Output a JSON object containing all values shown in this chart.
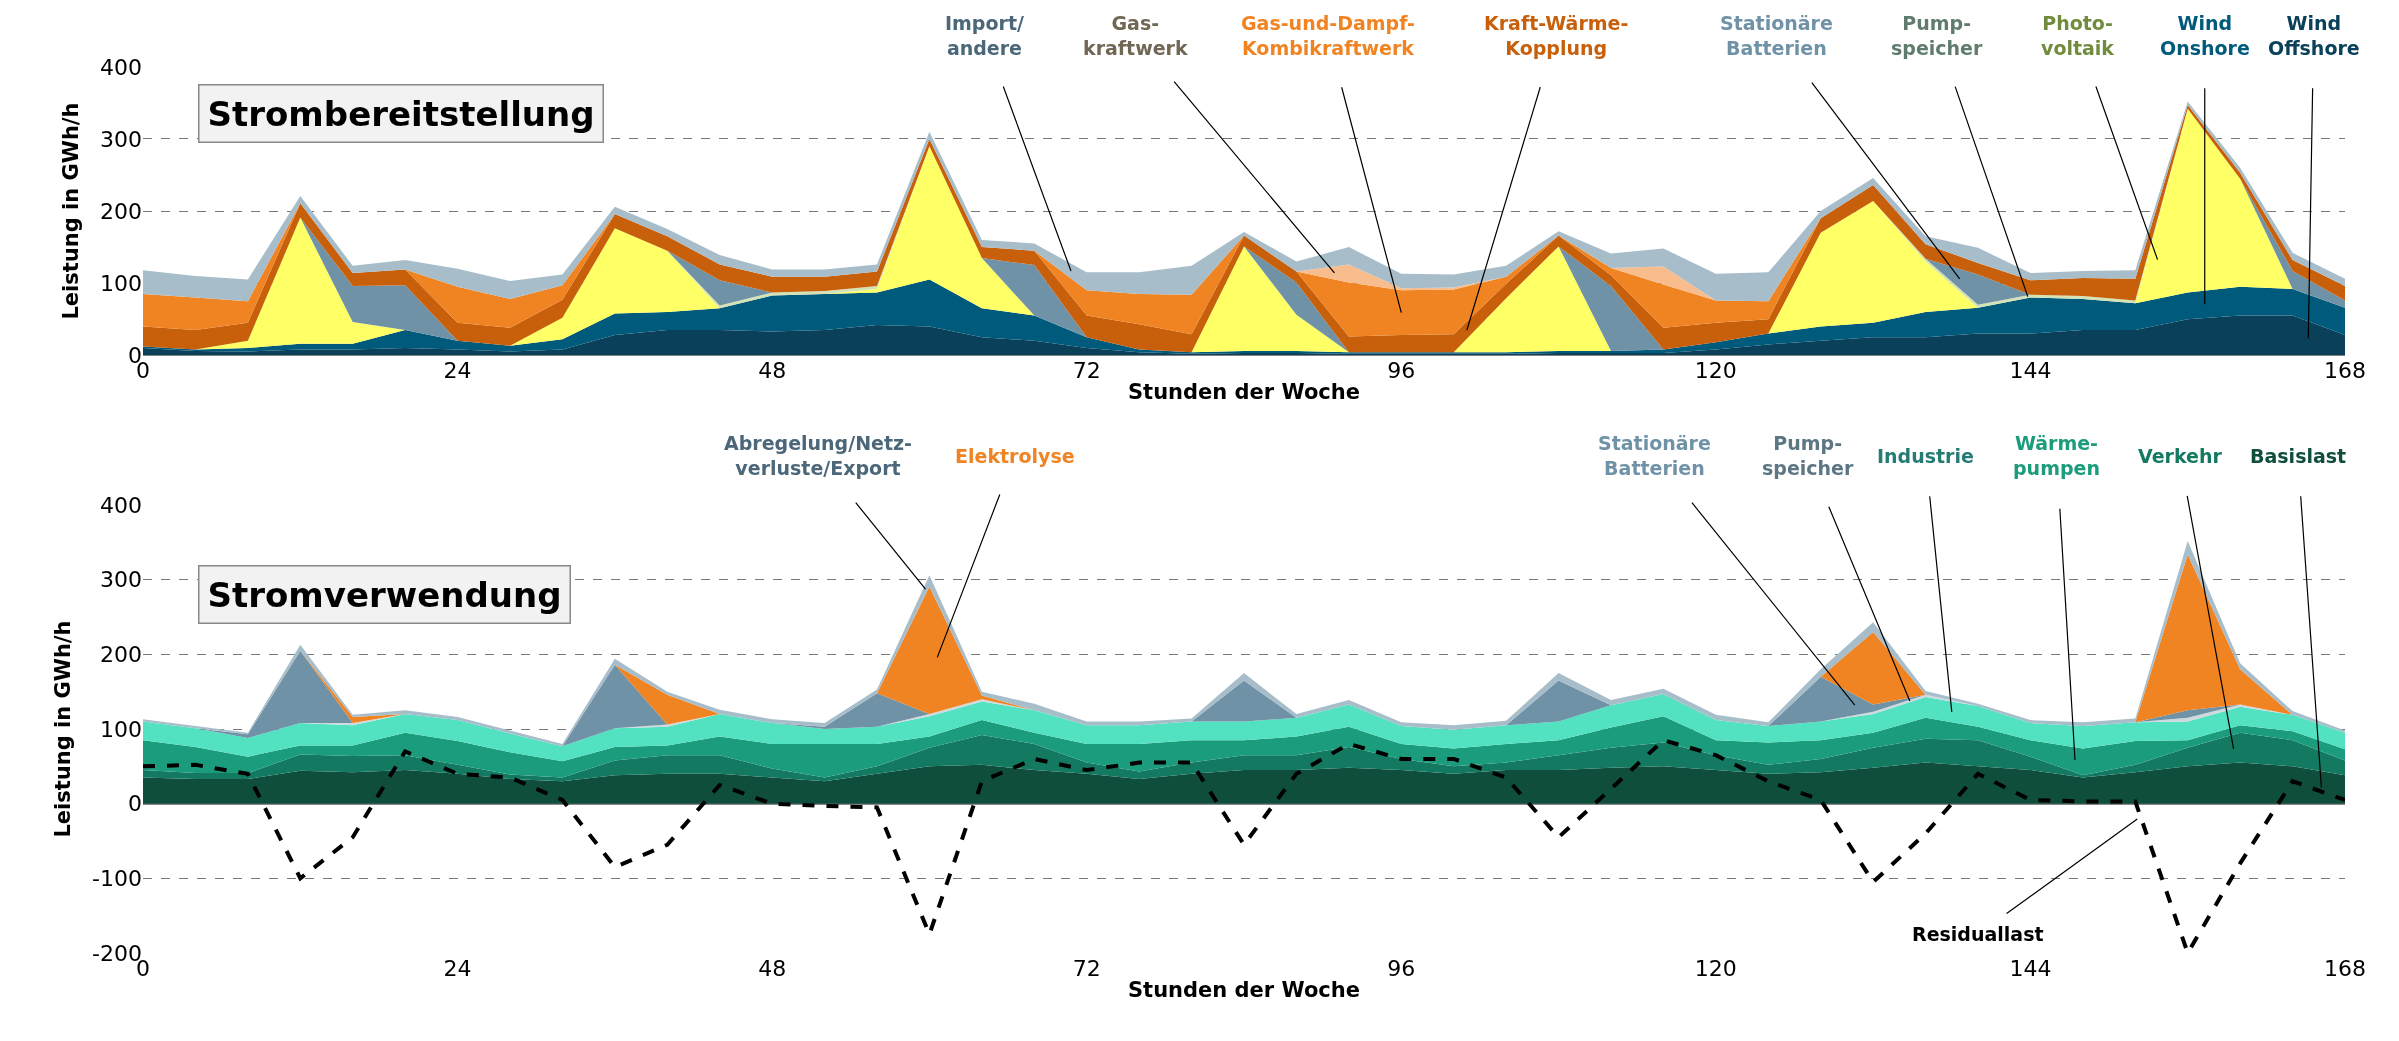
{
  "chart_data": [
    {
      "type": "area",
      "stacked": true,
      "title": "Strombereitstellung",
      "xlabel": "Stunden der Woche",
      "ylabel": "Leistung in GWh/h",
      "grid": "y",
      "xlim": [
        0,
        168
      ],
      "xticks": [
        0,
        24,
        48,
        72,
        96,
        120,
        144,
        168
      ],
      "ylim": [
        0,
        400
      ],
      "yticks": [
        0,
        100,
        200,
        300,
        400
      ],
      "x": [
        0,
        4,
        8,
        12,
        16,
        20,
        24,
        28,
        32,
        36,
        40,
        44,
        48,
        52,
        56,
        60,
        64,
        68,
        72,
        76,
        80,
        84,
        88,
        92,
        96,
        100,
        104,
        108,
        112,
        116,
        120,
        124,
        128,
        132,
        136,
        140,
        144,
        148,
        152,
        156,
        160,
        164,
        168
      ],
      "series": [
        {
          "name": "Wind\nOffshore",
          "color": "#0a4059",
          "values": [
            10,
            6,
            5,
            8,
            8,
            10,
            8,
            5,
            8,
            28,
            35,
            35,
            33,
            35,
            42,
            40,
            25,
            20,
            10,
            4,
            2,
            3,
            3,
            2,
            2,
            2,
            2,
            3,
            3,
            3,
            8,
            15,
            20,
            25,
            25,
            30,
            30,
            35,
            35,
            50,
            55,
            55,
            28
          ]
        },
        {
          "name": "Wind\nOnshore",
          "color": "#005a7c",
          "values": [
            2,
            2,
            5,
            8,
            8,
            25,
            12,
            8,
            14,
            30,
            25,
            30,
            50,
            50,
            45,
            65,
            40,
            35,
            15,
            4,
            2,
            3,
            3,
            2,
            2,
            2,
            2,
            3,
            3,
            5,
            10,
            15,
            20,
            20,
            35,
            36,
            50,
            43,
            37,
            37,
            40,
            37,
            38
          ]
        },
        {
          "name": "Photo-\nvoltaik",
          "color": "#ffff66",
          "values": [
            null,
            0,
            10,
            175,
            30,
            0,
            null,
            0,
            30,
            118,
            85,
            0,
            null,
            0,
            5,
            185,
            70,
            0,
            null,
            null,
            0,
            145,
            50,
            0,
            null,
            0,
            75,
            145,
            0,
            null,
            null,
            0,
            130,
            169,
            70,
            0,
            null,
            null,
            0,
            255,
            150,
            0,
            null
          ]
        },
        {
          "name": "Pump-\nspeicher",
          "color": "#d4e3b5",
          "values": [
            null,
            null,
            null,
            null,
            null,
            null,
            null,
            null,
            null,
            null,
            0,
            4,
            4,
            4,
            4,
            0,
            null,
            null,
            null,
            null,
            null,
            null,
            null,
            null,
            null,
            null,
            null,
            null,
            null,
            null,
            null,
            null,
            null,
            0,
            4,
            4,
            4,
            4,
            4,
            0,
            null,
            null,
            null
          ]
        },
        {
          "name": "Stationäre\nBatterien",
          "color": "#7092a6",
          "values": [
            null,
            null,
            null,
            0,
            50,
            62,
            0,
            null,
            null,
            null,
            0,
            35,
            0,
            null,
            null,
            null,
            0,
            70,
            0,
            null,
            null,
            0,
            45,
            0,
            null,
            null,
            null,
            0,
            90,
            0,
            null,
            null,
            null,
            null,
            0,
            42,
            0,
            null,
            null,
            null,
            0,
            25,
            10
          ]
        },
        {
          "name": "Kraft-Wärme-\nKopplung",
          "color": "#c85f0a",
          "values": [
            28,
            27,
            25,
            20,
            18,
            22,
            25,
            25,
            25,
            20,
            20,
            22,
            22,
            20,
            20,
            10,
            15,
            20,
            30,
            35,
            25,
            15,
            15,
            22,
            24,
            25,
            20,
            15,
            15,
            30,
            27,
            20,
            20,
            22,
            20,
            16,
            20,
            25,
            30,
            5,
            8,
            15,
            20
          ]
        },
        {
          "name": "Gas-und-Dampf-\nKombikraftwerk",
          "color": "#f18422",
          "values": [
            45,
            45,
            30,
            0,
            null,
            0,
            50,
            40,
            20,
            0,
            null,
            null,
            null,
            null,
            null,
            null,
            null,
            0,
            35,
            42,
            55,
            0,
            0,
            75,
            62,
            62,
            10,
            0,
            10,
            60,
            31,
            25,
            0,
            null,
            null,
            null,
            null,
            null,
            null,
            null,
            null,
            null,
            null
          ]
        },
        {
          "name": "Gas-\nkraftwerk",
          "color": "#f9bd8d",
          "values": [
            null,
            null,
            null,
            null,
            null,
            null,
            null,
            null,
            null,
            null,
            null,
            null,
            null,
            null,
            null,
            null,
            null,
            null,
            null,
            null,
            null,
            null,
            0,
            25,
            3,
            3,
            0,
            null,
            0,
            25,
            0,
            null,
            null,
            null,
            null,
            null,
            null,
            null,
            null,
            null,
            null,
            null,
            null
          ]
        },
        {
          "name": "Import/\nandere",
          "color": "#a7bdca",
          "values": [
            33,
            30,
            30,
            10,
            10,
            13,
            25,
            25,
            15,
            10,
            10,
            13,
            10,
            10,
            10,
            10,
            10,
            10,
            25,
            30,
            40,
            5,
            14,
            24,
            20,
            18,
            15,
            6,
            20,
            25,
            37,
            40,
            10,
            10,
            11,
            21,
            10,
            10,
            12,
            5,
            7,
            10,
            10
          ]
        }
      ]
    },
    {
      "type": "area",
      "stacked": true,
      "title": "Stromverwendung",
      "xlabel": "Stunden der Woche",
      "ylabel": "Leistung in GWh/h",
      "grid": "y",
      "xlim": [
        0,
        168
      ],
      "xticks": [
        0,
        24,
        48,
        72,
        96,
        120,
        144,
        168
      ],
      "ylim": [
        -200,
        400
      ],
      "yticks": [
        -200,
        -100,
        0,
        100,
        200,
        300,
        400
      ],
      "x": [
        0,
        4,
        8,
        12,
        16,
        20,
        24,
        28,
        32,
        36,
        40,
        44,
        48,
        52,
        56,
        60,
        64,
        68,
        72,
        76,
        80,
        84,
        88,
        92,
        96,
        100,
        104,
        108,
        112,
        116,
        120,
        124,
        128,
        132,
        136,
        140,
        144,
        148,
        152,
        156,
        160,
        164,
        168
      ],
      "series": [
        {
          "name": "Basislast",
          "color": "#0f4d3d",
          "values": [
            35,
            33,
            33,
            44,
            42,
            45,
            40,
            33,
            30,
            38,
            40,
            40,
            35,
            30,
            40,
            50,
            52,
            45,
            40,
            33,
            40,
            45,
            45,
            48,
            45,
            40,
            45,
            45,
            48,
            50,
            45,
            40,
            42,
            48,
            55,
            50,
            45,
            35,
            42,
            50,
            55,
            50,
            38
          ]
        },
        {
          "name": "Verkehr",
          "color": "#137a61",
          "values": [
            10,
            8,
            8,
            22,
            22,
            20,
            12,
            6,
            5,
            20,
            25,
            25,
            12,
            5,
            10,
            25,
            40,
            35,
            15,
            10,
            15,
            20,
            20,
            28,
            15,
            10,
            10,
            20,
            27,
            32,
            20,
            12,
            18,
            27,
            32,
            35,
            18,
            3,
            10,
            25,
            40,
            35,
            20
          ]
        },
        {
          "name": "Wärme-\npumpen",
          "color": "#1b9c7c",
          "values": [
            40,
            35,
            22,
            12,
            14,
            30,
            32,
            30,
            22,
            18,
            13,
            25,
            33,
            45,
            30,
            15,
            20,
            15,
            25,
            37,
            30,
            20,
            25,
            27,
            20,
            24,
            25,
            20,
            27,
            35,
            20,
            30,
            25,
            20,
            28,
            18,
            22,
            36,
            32,
            10,
            10,
            12,
            15
          ]
        },
        {
          "name": "Industrie",
          "color": "#52e2c2",
          "values": [
            25,
            25,
            25,
            30,
            27,
            25,
            28,
            25,
            20,
            25,
            25,
            30,
            28,
            20,
            23,
            27,
            25,
            30,
            25,
            25,
            25,
            25,
            25,
            30,
            24,
            25,
            25,
            25,
            30,
            30,
            27,
            22,
            25,
            25,
            28,
            28,
            23,
            30,
            25,
            25,
            25,
            22,
            22
          ]
        },
        {
          "name": "Pump-\nspeicher",
          "color": "#cfd8dd",
          "values": [
            null,
            null,
            null,
            0,
            3,
            0,
            null,
            null,
            null,
            0,
            3,
            0,
            null,
            null,
            0,
            3,
            3,
            0,
            null,
            null,
            null,
            null,
            null,
            null,
            null,
            null,
            null,
            null,
            null,
            null,
            null,
            null,
            0,
            3,
            3,
            0,
            null,
            null,
            0,
            5,
            3,
            0,
            null
          ]
        },
        {
          "name": "Stationäre\nBatterien",
          "color": "#7092a6",
          "values": [
            null,
            0,
            5,
            97,
            0,
            null,
            null,
            null,
            0,
            85,
            0,
            null,
            0,
            3,
            45,
            0,
            null,
            null,
            null,
            null,
            0,
            55,
            0,
            null,
            null,
            null,
            0,
            55,
            0,
            null,
            null,
            0,
            60,
            10,
            0,
            null,
            null,
            null,
            0,
            10,
            0,
            null,
            null
          ]
        },
        {
          "name": "Elektrolyse",
          "color": "#f18422",
          "values": [
            null,
            null,
            null,
            0,
            8,
            0,
            null,
            null,
            null,
            0,
            40,
            0,
            null,
            null,
            0,
            171,
            5,
            0,
            null,
            null,
            null,
            null,
            null,
            null,
            null,
            null,
            null,
            null,
            null,
            null,
            null,
            null,
            0,
            97,
            0,
            null,
            null,
            null,
            0,
            209,
            47,
            0,
            null
          ]
        },
        {
          "name": "Abregelung/Netz-\nverluste/Export",
          "color": "#a7bdca",
          "values": [
            3,
            3,
            2,
            8,
            3,
            5,
            4,
            4,
            3,
            8,
            4,
            6,
            5,
            5,
            5,
            15,
            5,
            9,
            5,
            5,
            4,
            10,
            5,
            6,
            5,
            6,
            6,
            10,
            7,
            7,
            7,
            5,
            10,
            13,
            5,
            3,
            4,
            5,
            5,
            18,
            8,
            5,
            3
          ]
        },
        {
          "name": "Residuallast",
          "type": "line",
          "line_style": "dashed",
          "color": "#000000",
          "values": [
            50,
            52,
            40,
            -100,
            -45,
            70,
            40,
            35,
            5,
            -85,
            -55,
            25,
            0,
            -3,
            -5,
            -175,
            30,
            60,
            45,
            55,
            55,
            -55,
            40,
            80,
            60,
            60,
            35,
            -45,
            20,
            85,
            65,
            30,
            5,
            -105,
            -40,
            40,
            5,
            3,
            3,
            -200,
            -80,
            30,
            5
          ]
        }
      ]
    }
  ]
}
